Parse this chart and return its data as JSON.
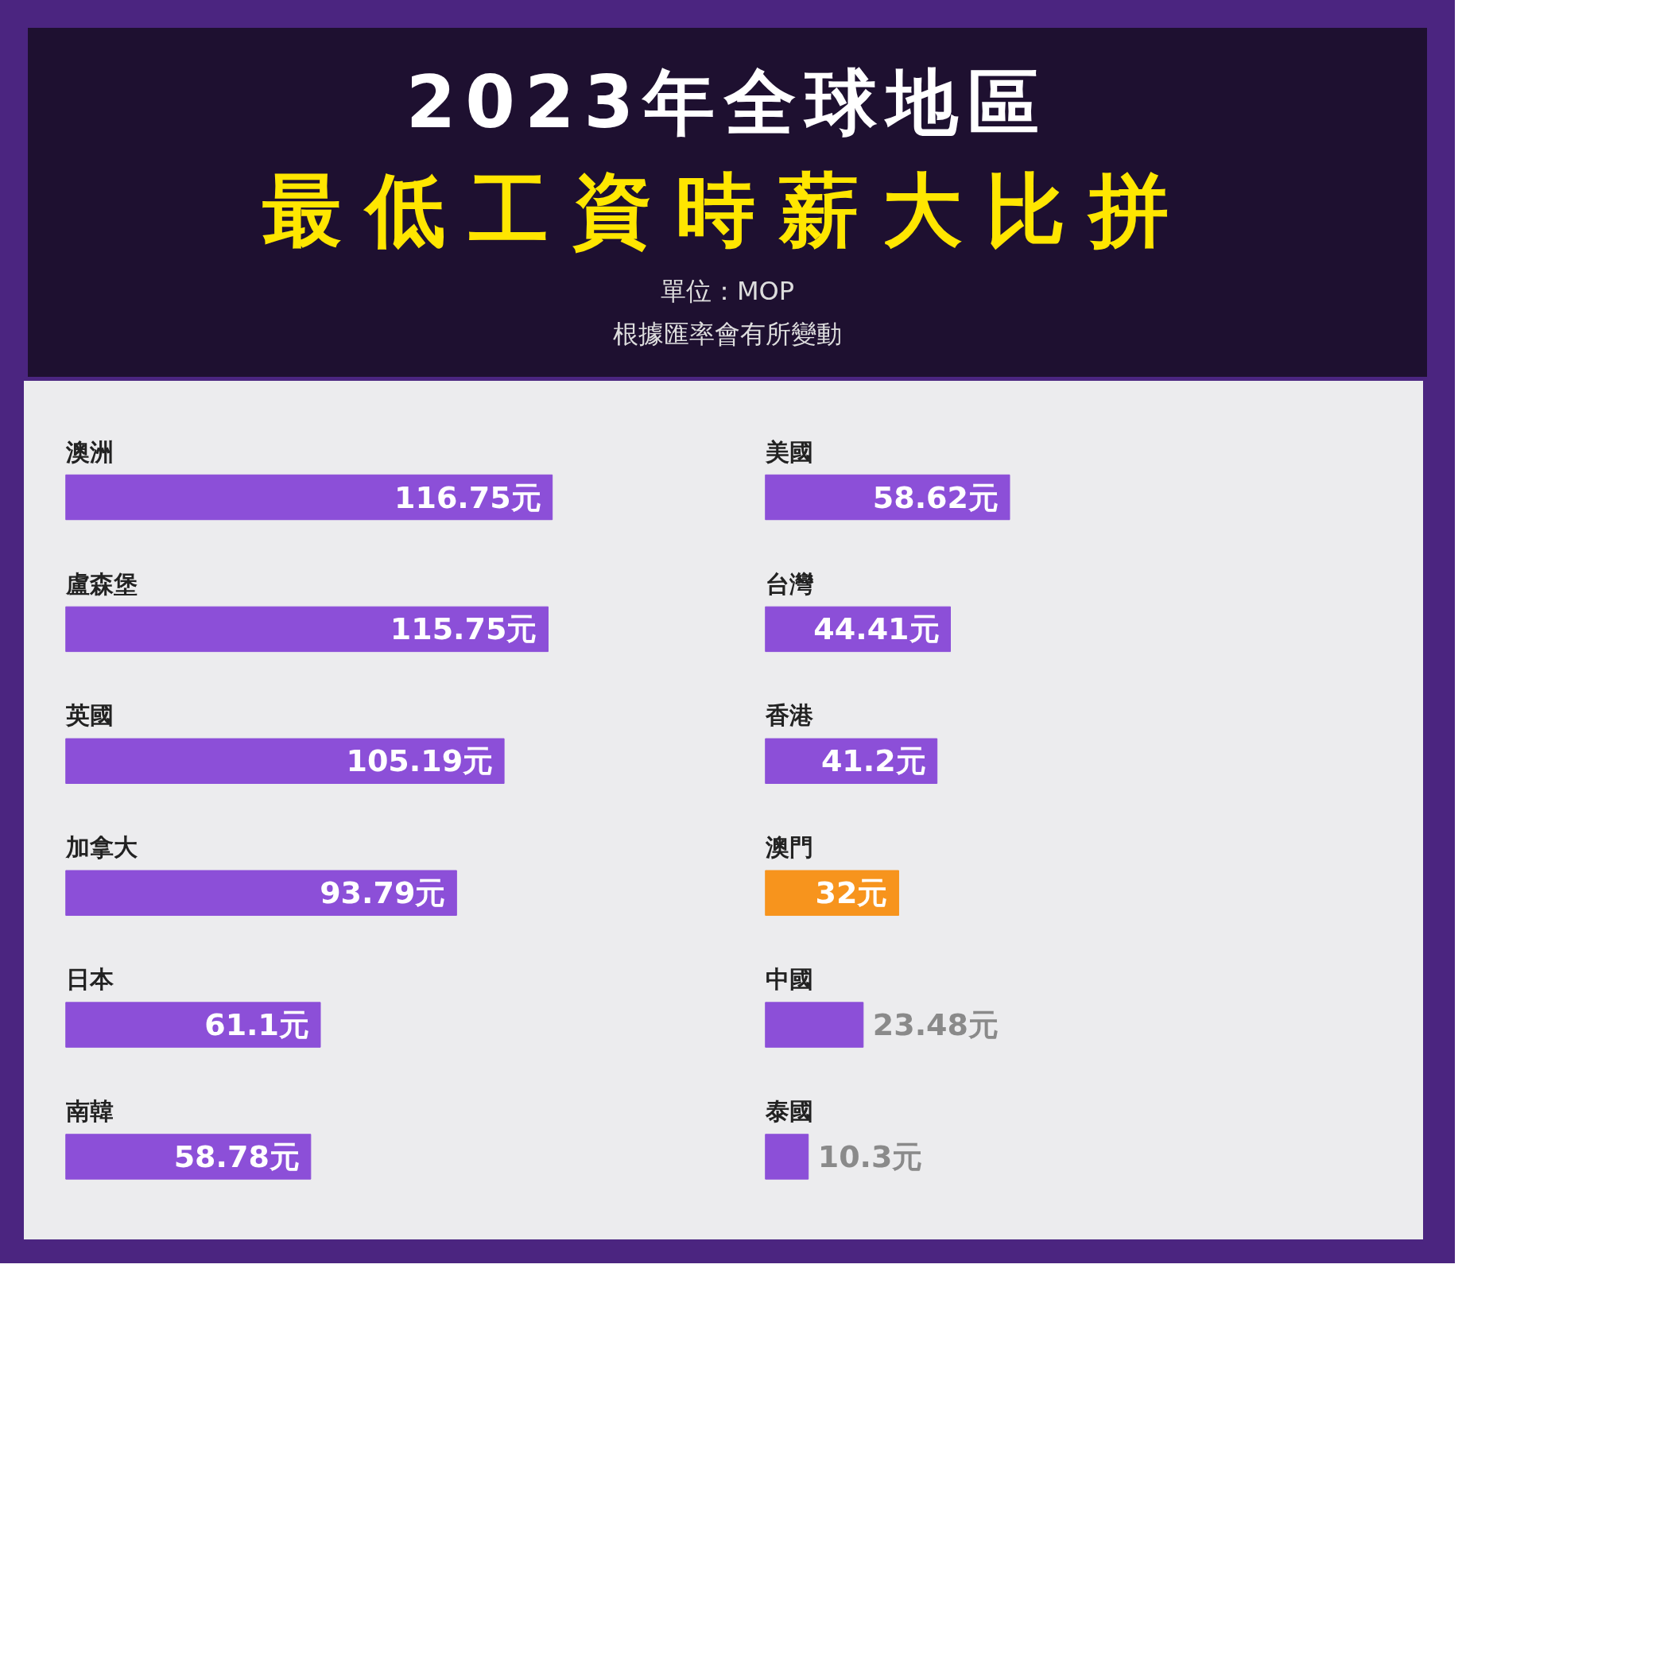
{
  "chart_data": [
    {
      "type": "bar",
      "orientation": "horizontal",
      "title": "2023年全球地區",
      "subtitle": "最低工資時薪大比拼",
      "annotations": [
        "單位：MOP",
        "根據匯率會有所變動"
      ],
      "categories": [
        "澳洲",
        "盧森堡",
        "英國",
        "加拿大",
        "日本",
        "南韓"
      ],
      "values": [
        116.75,
        115.75,
        105.19,
        93.79,
        61.1,
        58.78
      ],
      "colors": [
        "#8c4fd8",
        "#8c4fd8",
        "#8c4fd8",
        "#8c4fd8",
        "#8c4fd8",
        "#8c4fd8"
      ],
      "data_labels": true,
      "value_labels": [
        "116.75元",
        "115.75元",
        "105.19元",
        "93.79元",
        "61.1元",
        "58.78元"
      ],
      "grid": false,
      "tick_labels": false
    },
    {
      "type": "bar",
      "orientation": "horizontal",
      "categories": [
        "美國",
        "台灣",
        "香港",
        "澳門",
        "中國",
        "泰國"
      ],
      "values": [
        58.62,
        44.41,
        41.2,
        32,
        23.48,
        10.3
      ],
      "colors": [
        "#8c4fd8",
        "#8c4fd8",
        "#8c4fd8",
        "#f7941d",
        "#8c4fd8",
        "#8c4fd8"
      ],
      "data_labels": true,
      "value_labels": [
        "58.62元",
        "44.41元",
        "41.2元",
        "32元",
        "23.48元",
        "10.3元"
      ],
      "grid": false,
      "tick_labels": false
    }
  ]
}
